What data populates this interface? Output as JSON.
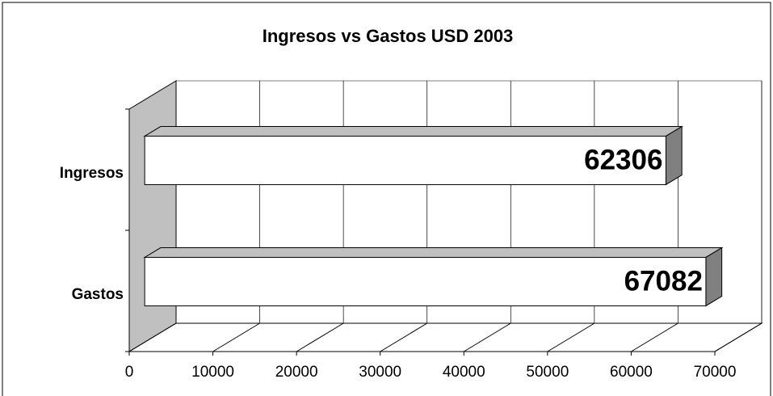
{
  "chart_data": {
    "type": "bar",
    "horizontal": true,
    "title": "Ingresos vs Gastos USD 2003",
    "categories": [
      "Ingresos",
      "Gastos"
    ],
    "values": [
      62306,
      67082
    ],
    "xlim": [
      0,
      70000
    ],
    "xticks": [
      0,
      10000,
      20000,
      30000,
      40000,
      50000,
      60000,
      70000
    ],
    "grid": true,
    "color": "#ffffff",
    "top_color": "#c0c0c0",
    "side_color": "#808080",
    "wall_color": "#c0c0c0"
  }
}
